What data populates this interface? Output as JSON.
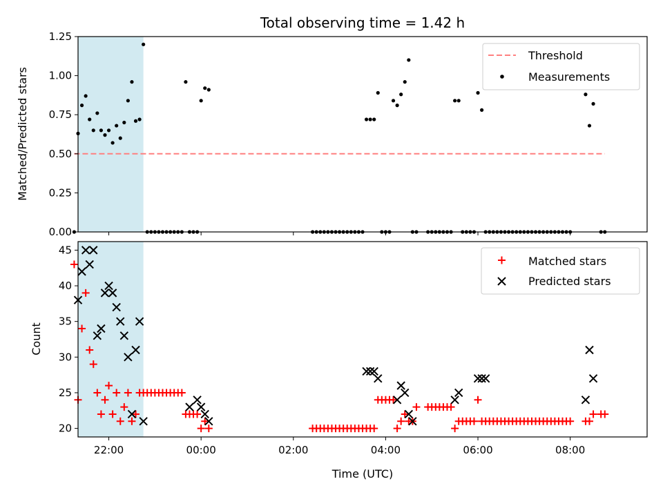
{
  "chart_data": [
    {
      "type": "scatter",
      "title": "Total observing time = 1.42 h",
      "xlabel": "",
      "ylabel": "Matched/Predicted stars",
      "xlim": [
        "21:20",
        "09:40"
      ],
      "ylim": [
        0,
        1.25
      ],
      "yticks": [
        "0.00",
        "0.25",
        "0.50",
        "0.75",
        "1.00",
        "1.25"
      ],
      "shaded_interval": [
        "21:20",
        "22:45"
      ],
      "colors": {
        "shade": "#add8e6",
        "threshold": "#ff7f7f",
        "measurement": "#000000"
      },
      "legend": {
        "placement": "top-right",
        "entries": [
          "Threshold",
          "Measurements"
        ]
      },
      "threshold": {
        "name": "Threshold",
        "value": 0.5,
        "x_range": [
          "21:15",
          "08:45"
        ]
      },
      "series": [
        {
          "name": "Measurements",
          "x": [
            "21:15",
            "21:20",
            "21:25",
            "21:30",
            "21:35",
            "21:40",
            "21:45",
            "21:50",
            "21:55",
            "22:00",
            "22:05",
            "22:10",
            "22:15",
            "22:20",
            "22:25",
            "22:30",
            "22:35",
            "22:40",
            "22:45",
            "22:50",
            "22:55",
            "23:00",
            "23:05",
            "23:10",
            "23:15",
            "23:20",
            "23:25",
            "23:30",
            "23:35",
            "23:40",
            "23:45",
            "23:50",
            "23:55",
            "00:00",
            "00:05",
            "00:10",
            "02:25",
            "02:30",
            "02:35",
            "02:40",
            "02:45",
            "02:50",
            "02:55",
            "03:00",
            "03:05",
            "03:10",
            "03:15",
            "03:20",
            "03:25",
            "03:30",
            "03:35",
            "03:40",
            "03:45",
            "03:50",
            "03:55",
            "04:00",
            "04:05",
            "04:10",
            "04:15",
            "04:20",
            "04:25",
            "04:30",
            "04:35",
            "04:40",
            "04:55",
            "05:00",
            "05:05",
            "05:10",
            "05:15",
            "05:20",
            "05:25",
            "05:30",
            "05:35",
            "05:40",
            "05:45",
            "05:50",
            "05:55",
            "06:00",
            "06:05",
            "06:10",
            "06:15",
            "06:20",
            "06:25",
            "06:30",
            "06:35",
            "06:40",
            "06:45",
            "06:50",
            "06:55",
            "07:00",
            "07:05",
            "07:10",
            "07:15",
            "07:20",
            "07:25",
            "07:30",
            "07:35",
            "07:40",
            "07:45",
            "07:50",
            "07:55",
            "08:00",
            "08:20",
            "08:25",
            "08:30",
            "08:40",
            "08:45"
          ],
          "y": [
            0.0,
            0.63,
            0.81,
            0.87,
            0.72,
            0.65,
            0.76,
            0.65,
            0.62,
            0.65,
            0.57,
            0.68,
            0.6,
            0.7,
            0.84,
            0.96,
            0.71,
            0.72,
            1.2,
            0.0,
            0.0,
            0.0,
            0.0,
            0.0,
            0.0,
            0.0,
            0.0,
            0.0,
            0.0,
            0.96,
            0.0,
            0.0,
            0.0,
            0.84,
            0.92,
            0.91,
            0.0,
            0.0,
            0.0,
            0.0,
            0.0,
            0.0,
            0.0,
            0.0,
            0.0,
            0.0,
            0.0,
            0.0,
            0.0,
            0.0,
            0.72,
            0.72,
            0.72,
            0.89,
            0.0,
            0.0,
            0.0,
            0.84,
            0.81,
            0.88,
            0.96,
            1.1,
            0.0,
            0.0,
            0.0,
            0.0,
            0.0,
            0.0,
            0.0,
            0.0,
            0.0,
            0.84,
            0.84,
            0.0,
            0.0,
            0.0,
            0.0,
            0.89,
            0.78,
            0.0,
            0.0,
            0.0,
            0.0,
            0.0,
            0.0,
            0.0,
            0.0,
            0.0,
            0.0,
            0.0,
            0.0,
            0.0,
            0.0,
            0.0,
            0.0,
            0.0,
            0.0,
            0.0,
            0.0,
            0.0,
            0.0,
            0.0,
            0.88,
            0.68,
            0.82,
            0.0,
            0.0
          ]
        }
      ]
    },
    {
      "type": "scatter",
      "title": "",
      "xlabel": "Time (UTC)",
      "ylabel": "Count",
      "xlim": [
        "21:20",
        "09:40"
      ],
      "ylim": [
        18.8,
        46.2
      ],
      "yticks": [
        "20",
        "25",
        "30",
        "35",
        "40",
        "45"
      ],
      "xticks": [
        "22:00",
        "00:00",
        "02:00",
        "04:00",
        "06:00",
        "08:00"
      ],
      "shaded_interval": [
        "21:20",
        "22:45"
      ],
      "colors": {
        "shade": "#add8e6",
        "matched": "#ff0000",
        "predicted": "#000000"
      },
      "legend": {
        "placement": "top-right",
        "entries": [
          "Matched stars",
          "Predicted stars"
        ]
      },
      "series": [
        {
          "name": "Matched stars",
          "x": [
            "21:15",
            "21:20",
            "21:25",
            "21:30",
            "21:35",
            "21:40",
            "21:45",
            "21:50",
            "21:55",
            "22:00",
            "22:05",
            "22:10",
            "22:15",
            "22:20",
            "22:25",
            "22:30",
            "22:35",
            "22:40",
            "22:45",
            "22:50",
            "22:55",
            "23:00",
            "23:05",
            "23:10",
            "23:15",
            "23:20",
            "23:25",
            "23:30",
            "23:35",
            "23:40",
            "23:45",
            "23:50",
            "23:55",
            "00:00",
            "00:05",
            "00:10",
            "02:25",
            "02:30",
            "02:35",
            "02:40",
            "02:45",
            "02:50",
            "02:55",
            "03:00",
            "03:05",
            "03:10",
            "03:15",
            "03:20",
            "03:25",
            "03:30",
            "03:35",
            "03:40",
            "03:45",
            "03:50",
            "03:55",
            "04:00",
            "04:05",
            "04:10",
            "04:15",
            "04:20",
            "04:25",
            "04:30",
            "04:35",
            "04:40",
            "04:55",
            "05:00",
            "05:05",
            "05:10",
            "05:15",
            "05:20",
            "05:25",
            "05:30",
            "05:35",
            "05:40",
            "05:45",
            "05:50",
            "05:55",
            "06:00",
            "06:05",
            "06:10",
            "06:15",
            "06:20",
            "06:25",
            "06:30",
            "06:35",
            "06:40",
            "06:45",
            "06:50",
            "06:55",
            "07:00",
            "07:05",
            "07:10",
            "07:15",
            "07:20",
            "07:25",
            "07:30",
            "07:35",
            "07:40",
            "07:45",
            "07:50",
            "07:55",
            "08:00",
            "08:20",
            "08:25",
            "08:30",
            "08:40",
            "08:45"
          ],
          "y": [
            43,
            24,
            34,
            39,
            31,
            29,
            25,
            22,
            24,
            26,
            22,
            25,
            21,
            23,
            25,
            21,
            22,
            25,
            25,
            25,
            25,
            25,
            25,
            25,
            25,
            25,
            25,
            25,
            25,
            22,
            22,
            22,
            22,
            20,
            21,
            20,
            20,
            20,
            20,
            20,
            20,
            20,
            20,
            20,
            20,
            20,
            20,
            20,
            20,
            20,
            20,
            20,
            20,
            24,
            24,
            24,
            24,
            24,
            20,
            21,
            22,
            21,
            21,
            23,
            23,
            23,
            23,
            23,
            23,
            23,
            23,
            20,
            21,
            21,
            21,
            21,
            21,
            24,
            21,
            21,
            21,
            21,
            21,
            21,
            21,
            21,
            21,
            21,
            21,
            21,
            21,
            21,
            21,
            21,
            21,
            21,
            21,
            21,
            21,
            21,
            21,
            21,
            21,
            21,
            22,
            22,
            22
          ]
        },
        {
          "name": "Predicted stars",
          "x": [
            "21:20",
            "21:25",
            "21:30",
            "21:35",
            "21:40",
            "21:45",
            "21:50",
            "21:55",
            "22:00",
            "22:05",
            "22:10",
            "22:15",
            "22:20",
            "22:25",
            "22:30",
            "22:35",
            "22:40",
            "22:45",
            "23:45",
            "23:55",
            "24:00",
            "24:05",
            "24:10",
            "03:35",
            "03:40",
            "03:45",
            "03:50",
            "04:15",
            "04:20",
            "04:25",
            "04:30",
            "04:35",
            "05:30",
            "05:35",
            "06:00",
            "06:05",
            "06:10",
            "08:20",
            "08:25",
            "08:30"
          ],
          "y": [
            38,
            42,
            45,
            43,
            45,
            33,
            34,
            39,
            40,
            39,
            37,
            35,
            33,
            30,
            22,
            31,
            35,
            21,
            23,
            24,
            23,
            22,
            21,
            28,
            28,
            28,
            27,
            24,
            26,
            25,
            22,
            21,
            24,
            25,
            27,
            27,
            27,
            24,
            31,
            27
          ]
        }
      ]
    }
  ]
}
